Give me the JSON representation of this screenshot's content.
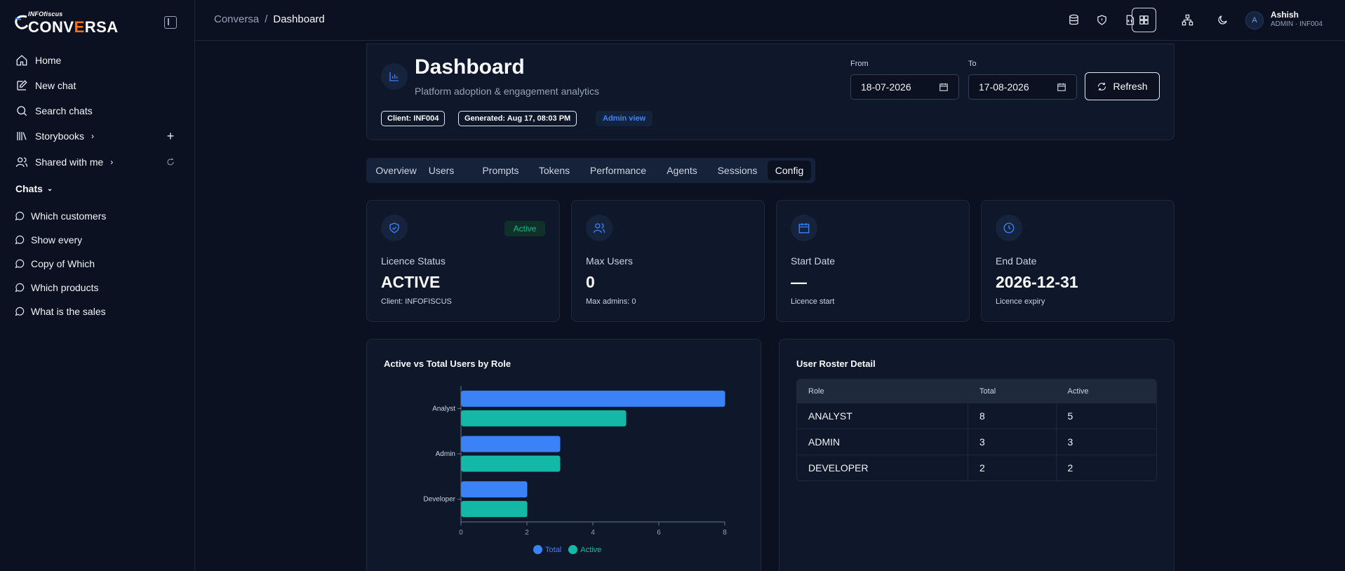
{
  "brand": {
    "small": "INFOfiscus",
    "big_a": "CONV",
    "big_b": "E",
    "big_c": "RSA",
    "accent": "#f97316"
  },
  "sidebar": {
    "items": [
      {
        "label": "Home"
      },
      {
        "label": "New chat"
      },
      {
        "label": "Search chats"
      },
      {
        "label": "Storybooks"
      },
      {
        "label": "Shared with me"
      }
    ],
    "chats_heading": "Chats",
    "chats": [
      "Which customers",
      "Show every",
      "Copy of Which",
      "Which products",
      "What is the sales"
    ]
  },
  "breadcrumb": {
    "root": "Conversa",
    "sep": "/",
    "current": "Dashboard"
  },
  "user": {
    "initial": "A",
    "name": "Ashish",
    "role": "ADMIN · INF004"
  },
  "header": {
    "title": "Dashboard",
    "subtitle": "Platform adoption & engagement analytics",
    "chips": [
      "Client: INF004",
      "Generated: Aug 17, 08:03 PM"
    ],
    "admin_chip": "Admin view",
    "from_label": "From",
    "from_value": "18-07-2026",
    "to_label": "To",
    "to_value": "17-08-2026",
    "refresh_label": "Refresh"
  },
  "tabs": [
    "Overview",
    "Users",
    "Prompts",
    "Tokens",
    "Performance",
    "Agents",
    "Sessions",
    "Config"
  ],
  "active_tab": "Config",
  "stats": [
    {
      "label": "Licence Status",
      "value": "ACTIVE",
      "sub": "Client: INFOFISCUS",
      "badge": "Active"
    },
    {
      "label": "Max Users",
      "value": "0",
      "sub": "Max admins: 0"
    },
    {
      "label": "Start Date",
      "value": "—",
      "sub": "Licence start"
    },
    {
      "label": "End Date",
      "value": "2026-12-31",
      "sub": "Licence expiry"
    }
  ],
  "chart_data": {
    "type": "bar",
    "orientation": "horizontal",
    "title": "Active vs Total Users by Role",
    "categories": [
      "Analyst",
      "Admin",
      "Developer"
    ],
    "series": [
      {
        "name": "Total",
        "values": [
          8,
          3,
          2
        ],
        "color": "#3b82f6"
      },
      {
        "name": "Active",
        "values": [
          5,
          3,
          2
        ],
        "color": "#14b8a6"
      }
    ],
    "xlim": [
      0,
      8
    ],
    "xticks": [
      0,
      2,
      4,
      6,
      8
    ],
    "legend": "bottom"
  },
  "roster": {
    "title": "User Roster Detail",
    "columns": [
      "Role",
      "Total",
      "Active"
    ],
    "rows": [
      [
        "ANALYST",
        "8",
        "5"
      ],
      [
        "ADMIN",
        "3",
        "3"
      ],
      [
        "DEVELOPER",
        "2",
        "2"
      ]
    ]
  }
}
